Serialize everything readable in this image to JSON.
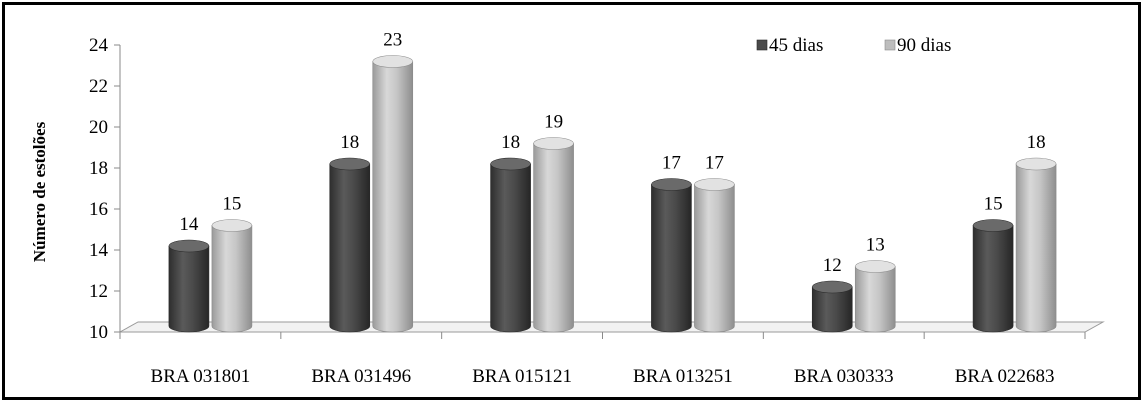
{
  "chart_data": {
    "type": "bar",
    "title": "",
    "xlabel": "",
    "ylabel": "Número de estolões",
    "ylim": [
      10,
      24
    ],
    "yticks": [
      10,
      12,
      14,
      16,
      18,
      20,
      22,
      24
    ],
    "categories": [
      "BRA 031801",
      "BRA 031496",
      "BRA 015121",
      "BRA 013251",
      "BRA 030333",
      "BRA 022683"
    ],
    "series": [
      {
        "name": "45 dias",
        "values": [
          14,
          18,
          18,
          17,
          12,
          15
        ],
        "color": "#4a4a4a"
      },
      {
        "name": "90 dias",
        "values": [
          15,
          23,
          19,
          17,
          13,
          18
        ],
        "color": "#bdbdbd"
      }
    ],
    "legend": "top-right",
    "grid": false,
    "style": "3d-cylinder"
  }
}
